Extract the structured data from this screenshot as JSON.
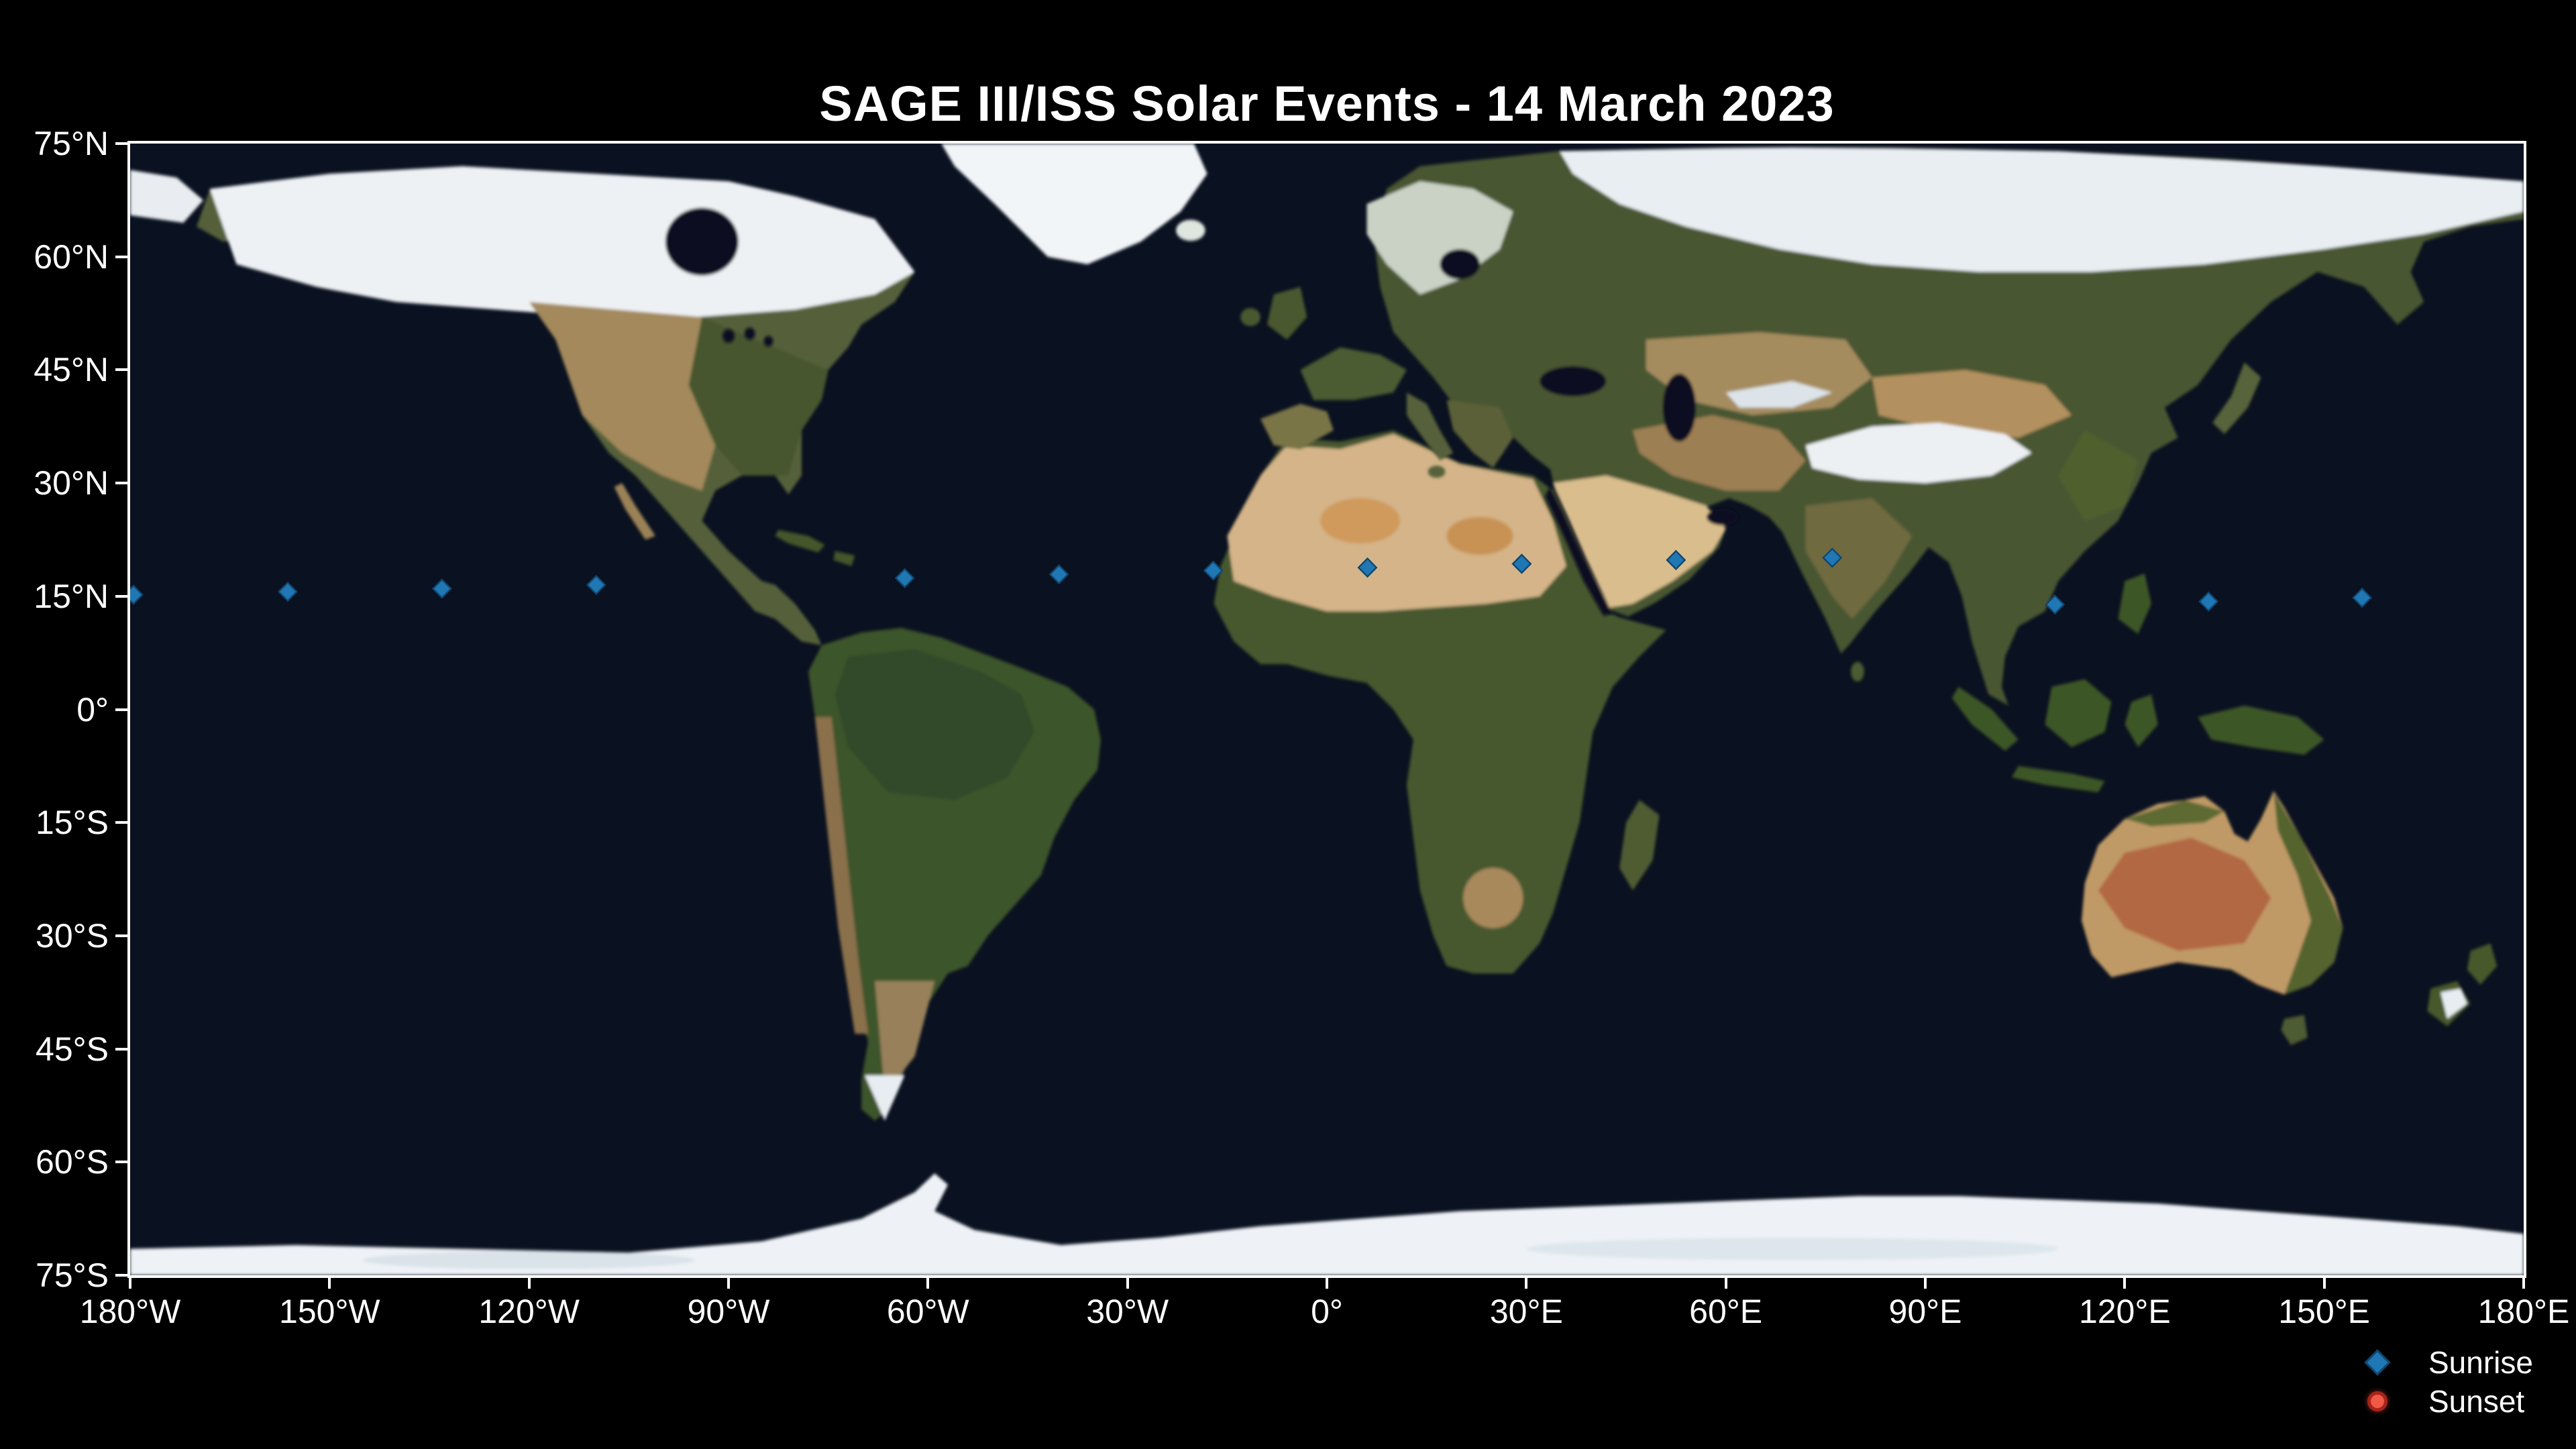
{
  "title": "SAGE III/ISS Solar Events - 14 March 2023",
  "colors": {
    "background": "#000000",
    "ocean": "#0a1120",
    "frame": "#ffffff",
    "text": "#ffffff",
    "ice": "#eef2f6",
    "land_green": "#4a5631",
    "desert": "#d4b488",
    "outback_red": "#b26742",
    "sunrise_fill": "#1f77b4",
    "sunrise_edge": "#10466e",
    "sunset_fill": "#f05848",
    "sunset_edge": "#a82318"
  },
  "legend": {
    "position": "lower right",
    "entries": [
      {
        "label": "Sunrise",
        "marker": "diamond",
        "fill": "#1f77b4",
        "edge": "#10466e"
      },
      {
        "label": "Sunset",
        "marker": "circle",
        "fill": "#f05848",
        "edge": "#a82318"
      }
    ]
  },
  "chart_data": {
    "type": "scatter",
    "title": "SAGE III/ISS Solar Events - 14 March 2023",
    "basemap": "world-satellite-blue-marble-equirectangular",
    "grid": false,
    "x_axis": {
      "range": [
        -180,
        180
      ],
      "ticks": [
        {
          "v": -180,
          "label": "180°W"
        },
        {
          "v": -150,
          "label": "150°W"
        },
        {
          "v": -120,
          "label": "120°W"
        },
        {
          "v": -90,
          "label": "90°W"
        },
        {
          "v": -60,
          "label": "60°W"
        },
        {
          "v": -30,
          "label": "30°W"
        },
        {
          "v": 0,
          "label": "0°"
        },
        {
          "v": 30,
          "label": "30°E"
        },
        {
          "v": 60,
          "label": "60°E"
        },
        {
          "v": 90,
          "label": "90°E"
        },
        {
          "v": 120,
          "label": "120°E"
        },
        {
          "v": 150,
          "label": "150°E"
        },
        {
          "v": 180,
          "label": "180°E"
        }
      ]
    },
    "y_axis": {
      "range": [
        -75,
        75
      ],
      "ticks": [
        {
          "v": 75,
          "label": "75°N"
        },
        {
          "v": 60,
          "label": "60°N"
        },
        {
          "v": 45,
          "label": "45°N"
        },
        {
          "v": 30,
          "label": "30°N"
        },
        {
          "v": 15,
          "label": "15°N"
        },
        {
          "v": 0,
          "label": "0°"
        },
        {
          "v": -15,
          "label": "15°S"
        },
        {
          "v": -30,
          "label": "30°S"
        },
        {
          "v": -45,
          "label": "45°S"
        },
        {
          "v": -60,
          "label": "60°S"
        },
        {
          "v": -75,
          "label": "75°S"
        }
      ]
    },
    "series": [
      {
        "name": "Sunrise",
        "marker": "diamond",
        "fill": "#1f77b4",
        "edge": "#10466e",
        "points": [
          {
            "lon": -179.5,
            "lat": 15.2
          },
          {
            "lon": -156.3,
            "lat": 15.6
          },
          {
            "lon": -133.1,
            "lat": 16.0
          },
          {
            "lon": -109.9,
            "lat": 16.5
          },
          {
            "lon": -63.5,
            "lat": 17.4
          },
          {
            "lon": -40.3,
            "lat": 17.9
          },
          {
            "lon": -17.1,
            "lat": 18.4
          },
          {
            "lon": 6.1,
            "lat": 18.8
          },
          {
            "lon": 29.3,
            "lat": 19.3
          },
          {
            "lon": 52.5,
            "lat": 19.8
          },
          {
            "lon": 76.0,
            "lat": 20.1
          },
          {
            "lon": 109.5,
            "lat": 13.9
          },
          {
            "lon": 132.6,
            "lat": 14.3
          },
          {
            "lon": 155.7,
            "lat": 14.8
          }
        ]
      },
      {
        "name": "Sunset",
        "marker": "circle",
        "fill": "#f05848",
        "edge": "#a82318",
        "points": []
      }
    ]
  }
}
